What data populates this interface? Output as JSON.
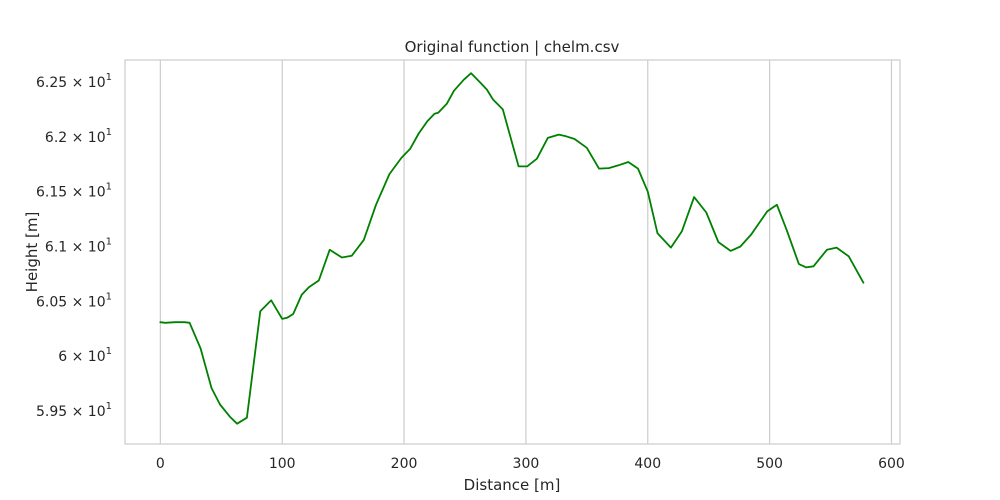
{
  "chart_data": {
    "type": "line",
    "title": "Original function | chelm.csv",
    "xlabel": "Distance [m]",
    "ylabel": "Height [m]",
    "xlim": [
      -29,
      607
    ],
    "ylim": [
      59.2,
      62.7
    ],
    "grid": "vertical",
    "x_ticks": [
      {
        "value": 0,
        "label": "0"
      },
      {
        "value": 100,
        "label": "100"
      },
      {
        "value": 200,
        "label": "200"
      },
      {
        "value": 300,
        "label": "300"
      },
      {
        "value": 400,
        "label": "400"
      },
      {
        "value": 500,
        "label": "500"
      },
      {
        "value": 600,
        "label": "600"
      }
    ],
    "y_ticks": [
      {
        "value": 59.5,
        "label": "5.95",
        "exp": "1"
      },
      {
        "value": 60.0,
        "label": "6",
        "exp": "1"
      },
      {
        "value": 60.5,
        "label": "6.05",
        "exp": "1"
      },
      {
        "value": 61.0,
        "label": "6.1",
        "exp": "1"
      },
      {
        "value": 61.5,
        "label": "6.15",
        "exp": "1"
      },
      {
        "value": 62.0,
        "label": "6.2",
        "exp": "1"
      },
      {
        "value": 62.5,
        "label": "6.25",
        "exp": "1"
      }
    ],
    "series": [
      {
        "color": "#008000",
        "x": [
          0,
          4,
          12,
          20,
          24,
          33,
          42,
          49,
          57,
          63,
          71,
          82,
          91,
          100,
          104,
          109,
          116,
          122,
          130,
          139,
          149,
          157,
          167,
          177,
          188,
          198,
          205,
          212,
          219,
          225,
          228,
          235,
          241,
          249,
          255,
          262,
          268,
          273,
          281,
          294,
          301,
          309,
          318,
          327,
          333,
          340,
          350,
          360,
          368,
          376,
          384,
          392,
          400,
          408,
          419,
          428,
          438,
          448,
          458,
          468,
          476,
          485,
          498,
          506,
          514,
          524,
          530,
          536,
          547,
          555,
          565,
          577
        ],
        "y": [
          60.31,
          60.305,
          60.31,
          60.31,
          60.305,
          60.07,
          59.71,
          59.56,
          59.45,
          59.385,
          59.44,
          60.41,
          60.51,
          60.34,
          60.35,
          60.385,
          60.56,
          60.63,
          60.69,
          60.97,
          60.9,
          60.915,
          61.06,
          61.38,
          61.66,
          61.81,
          61.89,
          62.03,
          62.14,
          62.21,
          62.22,
          62.3,
          62.42,
          62.52,
          62.58,
          62.5,
          62.43,
          62.34,
          62.25,
          61.73,
          61.73,
          61.8,
          61.99,
          62.02,
          62.005,
          61.98,
          61.9,
          61.71,
          61.715,
          61.74,
          61.77,
          61.71,
          61.5,
          61.12,
          60.99,
          61.14,
          61.45,
          61.31,
          61.04,
          60.96,
          61.0,
          61.11,
          61.32,
          61.38,
          61.15,
          60.84,
          60.81,
          60.82,
          60.97,
          60.99,
          60.91,
          60.67
        ]
      }
    ]
  }
}
